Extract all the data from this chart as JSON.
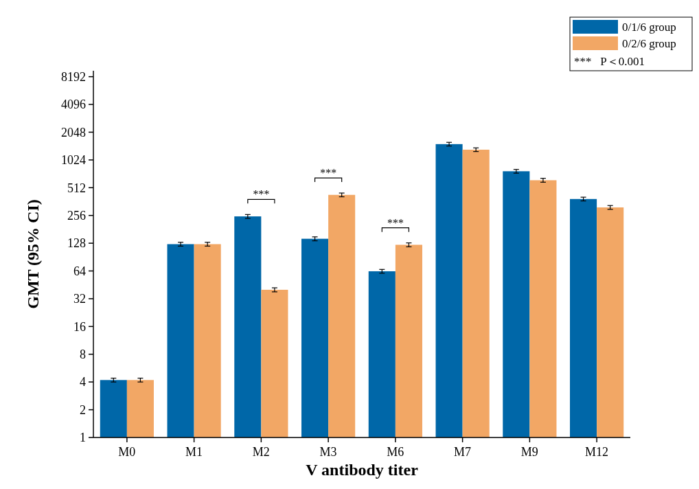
{
  "chart_data": {
    "type": "bar",
    "xlabel": "V antibody titer",
    "ylabel": "GMT (95% CI)",
    "log": true,
    "ylim": [
      1,
      9500
    ],
    "yticks": [
      1,
      2,
      4,
      8,
      16,
      32,
      64,
      128,
      256,
      512,
      1024,
      2048,
      4096,
      8192
    ],
    "categories": [
      "M0",
      "M1",
      "M2",
      "M3",
      "M6",
      "M7",
      "M9",
      "M12"
    ],
    "legend": "top right",
    "grid": false,
    "series": [
      {
        "name": "0/1/6 group",
        "color": "#0067a8",
        "values": [
          4.2,
          125,
          250,
          143,
          63.5,
          1520,
          772,
          386
        ],
        "errors": [
          0.2,
          6,
          12,
          7,
          3,
          70,
          36,
          18
        ]
      },
      {
        "name": "0/2/6 group",
        "color": "#f2a765",
        "values": [
          4.2,
          125,
          40,
          428,
          123,
          1323,
          617,
          313
        ],
        "errors": [
          0.2,
          6,
          2,
          20,
          6,
          60,
          30,
          15
        ]
      }
    ],
    "annotations": [
      "***",
      "***",
      "***",
      "***   P＜0.001"
    ]
  }
}
